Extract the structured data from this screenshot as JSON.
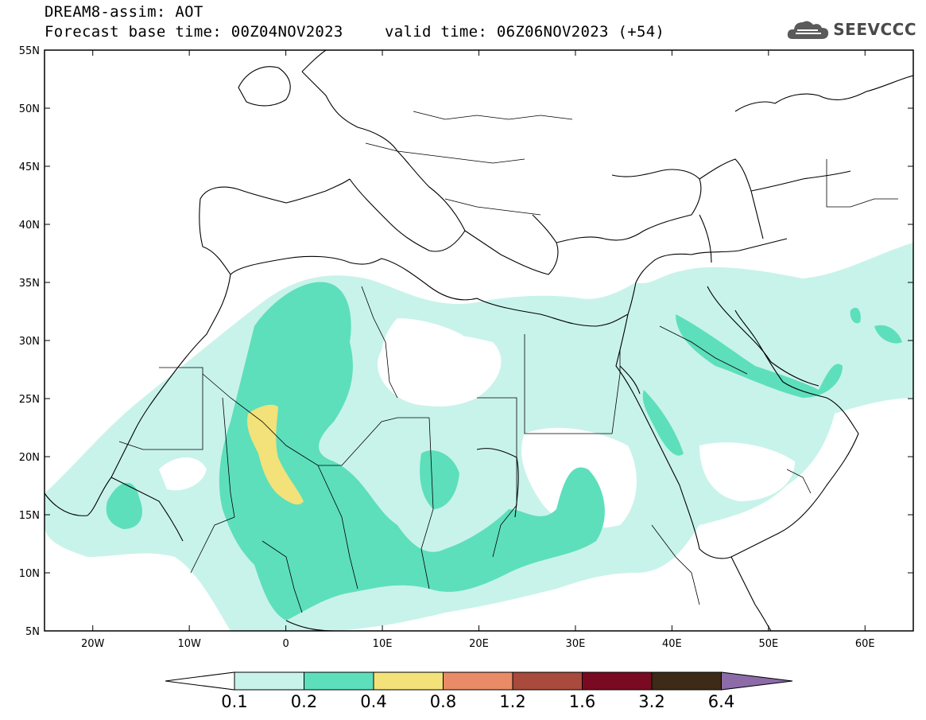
{
  "header": {
    "title": "DREAM8-assim: AOT",
    "base_time": "Forecast base time: 00Z04NOV2023",
    "valid_time": "valid time: 06Z06NOV2023 (+54)"
  },
  "logo": {
    "text": "SEEVCCC",
    "icon": "cloud-icon"
  },
  "map": {
    "lon_range": [
      -25,
      65
    ],
    "lat_range": [
      5,
      55
    ],
    "lat_labels": [
      "5N",
      "10N",
      "15N",
      "20N",
      "25N",
      "30N",
      "35N",
      "40N",
      "45N",
      "50N",
      "55N"
    ],
    "lat_values": [
      5,
      10,
      15,
      20,
      25,
      30,
      35,
      40,
      45,
      50,
      55
    ],
    "lon_labels": [
      "20W",
      "10W",
      "0",
      "10E",
      "20E",
      "30E",
      "40E",
      "50E",
      "60E"
    ],
    "lon_values": [
      -20,
      -10,
      0,
      10,
      20,
      30,
      40,
      50,
      60
    ]
  },
  "colorbar": {
    "labels": [
      "0.1",
      "0.2",
      "0.4",
      "0.8",
      "1.2",
      "1.6",
      "3.2",
      "6.4"
    ],
    "colors": [
      "#c8f3ea",
      "#5ddfbc",
      "#f2e279",
      "#e98b66",
      "#a84a3c",
      "#7a0a22",
      "#3d2a17"
    ],
    "over_color": "#8c6ba8",
    "under_color": "#ffffff"
  }
}
